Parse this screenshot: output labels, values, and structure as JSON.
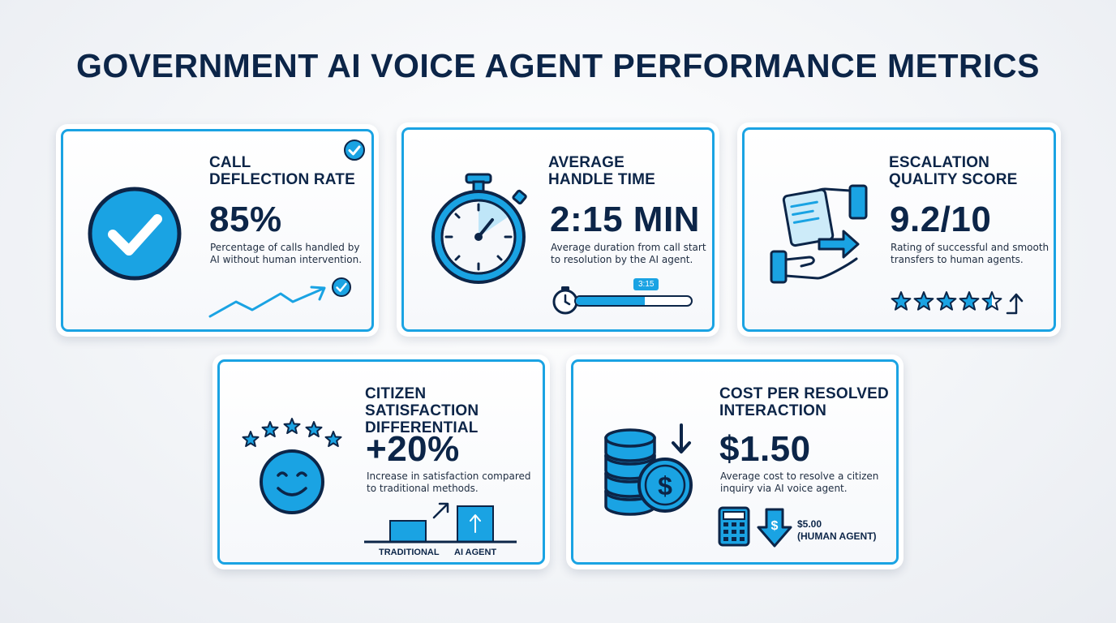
{
  "page": {
    "title": "GOVERNMENT AI VOICE AGENT PERFORMANCE METRICS",
    "accent_color": "#1aa3e3",
    "navy_color": "#0c2548"
  },
  "cards": {
    "deflection": {
      "title_lines": [
        "CALL",
        "DEFLECTION RATE"
      ],
      "value": "85%",
      "description_lines": [
        "Percentage of calls handled by",
        "AI without human intervention."
      ],
      "icons": [
        "check-badge-icon",
        "check-circle-icon",
        "trend-up-icon"
      ]
    },
    "handle_time": {
      "title_lines": [
        "AVERAGE",
        "HANDLE TIME"
      ],
      "value": "2:15 MIN",
      "description_lines": [
        "Average duration from call start",
        "to resolution by the AI agent."
      ],
      "progress_badge": "3:15",
      "progress_fraction": 0.6,
      "icons": [
        "stopwatch-icon",
        "small-stopwatch-icon"
      ]
    },
    "escalation": {
      "title_lines": [
        "ESCALATION",
        "QUALITY SCORE"
      ],
      "value": "9.2/10",
      "description_lines": [
        "Rating of successful and smooth",
        "transfers to human agents."
      ],
      "stars": 4.5,
      "stars_max": 5,
      "icons": [
        "handoff-icon",
        "star-icon",
        "arrow-up-icon"
      ]
    },
    "satisfaction": {
      "title_lines": [
        "CITIZEN SATISFACTION",
        "DIFFERENTIAL"
      ],
      "value": "+20%",
      "description_lines": [
        "Increase in satisfaction compared",
        "to traditional methods."
      ],
      "compare": {
        "traditional_label": "TRADITIONAL",
        "ai_label": "AI AGENT"
      },
      "icons": [
        "smiley-face-icon",
        "star-icon",
        "arrow-up-icon"
      ]
    },
    "cost": {
      "title_lines": [
        "COST PER RESOLVED",
        "INTERACTION"
      ],
      "value": "$1.50",
      "description_lines": [
        "Average cost to resolve a citizen",
        "inquiry via AI voice agent."
      ],
      "comparison_value": "$5.00",
      "comparison_label": "(HUMAN AGENT)",
      "icons": [
        "coin-stack-icon",
        "dollar-coin-icon",
        "calculator-icon",
        "down-arrow-dollar-icon"
      ]
    }
  }
}
